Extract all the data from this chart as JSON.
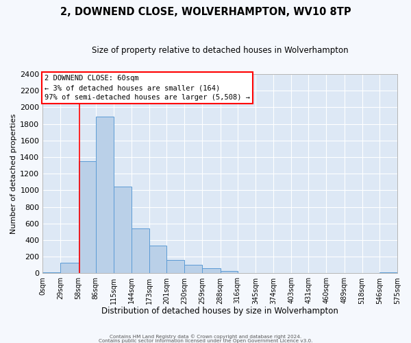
{
  "title": "2, DOWNEND CLOSE, WOLVERHAMPTON, WV10 8TP",
  "subtitle": "Size of property relative to detached houses in Wolverhampton",
  "xlabel": "Distribution of detached houses by size in Wolverhampton",
  "ylabel": "Number of detached properties",
  "bar_color": "#bad0e8",
  "bar_edge_color": "#5b9bd5",
  "background_color": "#dde8f5",
  "grid_color": "#ffffff",
  "fig_background": "#f5f8fd",
  "bin_edges": [
    0,
    29,
    58,
    86,
    115,
    144,
    173,
    201,
    230,
    259,
    288,
    316,
    345,
    374,
    403,
    431,
    460,
    489,
    518,
    546,
    575
  ],
  "bin_labels": [
    "0sqm",
    "29sqm",
    "58sqm",
    "86sqm",
    "115sqm",
    "144sqm",
    "173sqm",
    "201sqm",
    "230sqm",
    "259sqm",
    "288sqm",
    "316sqm",
    "345sqm",
    "374sqm",
    "403sqm",
    "431sqm",
    "460sqm",
    "489sqm",
    "518sqm",
    "546sqm",
    "575sqm"
  ],
  "bar_heights": [
    15,
    125,
    1350,
    1890,
    1045,
    540,
    335,
    160,
    105,
    60,
    30,
    5,
    0,
    0,
    0,
    0,
    0,
    0,
    0,
    15
  ],
  "red_line_x": 60,
  "ylim": [
    0,
    2400
  ],
  "yticks": [
    0,
    200,
    400,
    600,
    800,
    1000,
    1200,
    1400,
    1600,
    1800,
    2000,
    2200,
    2400
  ],
  "annotation_title": "2 DOWNEND CLOSE: 60sqm",
  "annotation_line1": "← 3% of detached houses are smaller (164)",
  "annotation_line2": "97% of semi-detached houses are larger (5,508) →",
  "footer1": "Contains HM Land Registry data © Crown copyright and database right 2024.",
  "footer2": "Contains public sector information licensed under the Open Government Licence v3.0."
}
